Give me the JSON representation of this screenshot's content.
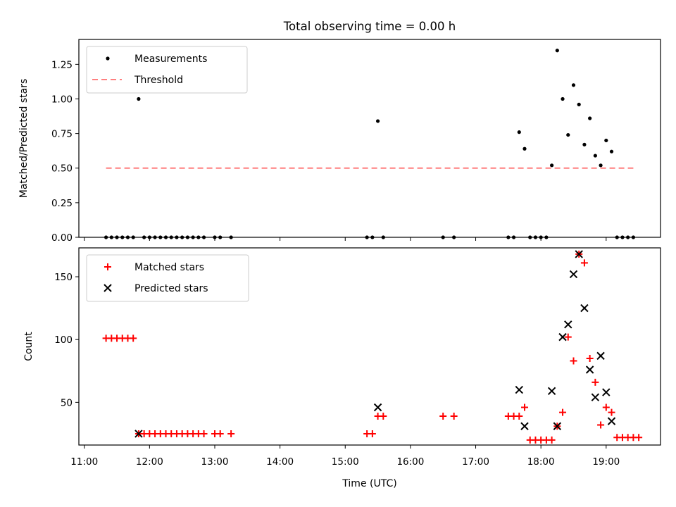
{
  "chart_data": {
    "title": "Total observing time = 0.00 h",
    "type": "scatter",
    "xlabel": "Time (UTC)",
    "x_ticks": [
      "11:00",
      "12:00",
      "13:00",
      "14:00",
      "15:00",
      "16:00",
      "17:00",
      "18:00",
      "19:00"
    ],
    "xlim": [
      "10:55",
      "19:50"
    ],
    "panels": [
      {
        "ylabel": "Matched/Predicted stars",
        "ylim": [
          0,
          1.43
        ],
        "y_ticks": [
          "0.00",
          "0.25",
          "0.50",
          "0.75",
          "1.00",
          "1.25"
        ],
        "legend": {
          "placement": "top-left",
          "entries": [
            "Measurements",
            "Threshold"
          ]
        },
        "series": [
          {
            "name": "Measurements",
            "color": "#000000",
            "marker": "dot",
            "points": [
              [
                "11:20",
                0
              ],
              [
                "11:25",
                0
              ],
              [
                "11:30",
                0
              ],
              [
                "11:35",
                0
              ],
              [
                "11:40",
                0
              ],
              [
                "11:45",
                0
              ],
              [
                "11:50",
                1.0
              ],
              [
                "11:55",
                0
              ],
              [
                "12:00",
                0
              ],
              [
                "12:05",
                0
              ],
              [
                "12:10",
                0
              ],
              [
                "12:15",
                0
              ],
              [
                "12:20",
                0
              ],
              [
                "12:25",
                0
              ],
              [
                "12:30",
                0
              ],
              [
                "12:35",
                0
              ],
              [
                "12:40",
                0
              ],
              [
                "12:45",
                0
              ],
              [
                "12:50",
                0
              ],
              [
                "13:00",
                0
              ],
              [
                "13:05",
                0
              ],
              [
                "13:15",
                0
              ],
              [
                "15:20",
                0
              ],
              [
                "15:25",
                0
              ],
              [
                "15:30",
                0.84
              ],
              [
                "15:35",
                0
              ],
              [
                "16:30",
                0
              ],
              [
                "16:40",
                0
              ],
              [
                "17:30",
                0
              ],
              [
                "17:35",
                0
              ],
              [
                "17:40",
                0.76
              ],
              [
                "17:45",
                0.64
              ],
              [
                "17:50",
                0
              ],
              [
                "17:55",
                0
              ],
              [
                "18:00",
                0
              ],
              [
                "18:05",
                0
              ],
              [
                "18:10",
                0.52
              ],
              [
                "18:15",
                1.35
              ],
              [
                "18:20",
                1.0
              ],
              [
                "18:25",
                0.74
              ],
              [
                "18:30",
                1.1
              ],
              [
                "18:35",
                0.96
              ],
              [
                "18:40",
                0.67
              ],
              [
                "18:45",
                0.86
              ],
              [
                "18:50",
                0.59
              ],
              [
                "18:55",
                0.52
              ],
              [
                "19:00",
                0.7
              ],
              [
                "19:05",
                0.62
              ],
              [
                "19:10",
                0
              ],
              [
                "19:15",
                0
              ],
              [
                "19:20",
                0
              ],
              [
                "19:25",
                0
              ]
            ]
          },
          {
            "name": "Threshold",
            "color": "#ff7f7f",
            "style": "dashed",
            "points": [
              [
                "11:20",
                0.5
              ],
              [
                "19:25",
                0.5
              ]
            ]
          }
        ]
      },
      {
        "ylabel": "Count",
        "ylim": [
          16,
          173
        ],
        "y_ticks": [
          "50",
          "100",
          "150"
        ],
        "legend": {
          "placement": "top-left",
          "entries": [
            "Matched stars",
            "Predicted stars"
          ]
        },
        "series": [
          {
            "name": "Matched stars",
            "color": "#ff0000",
            "marker": "plus",
            "points": [
              [
                "11:20",
                101
              ],
              [
                "11:25",
                101
              ],
              [
                "11:30",
                101
              ],
              [
                "11:35",
                101
              ],
              [
                "11:40",
                101
              ],
              [
                "11:45",
                101
              ],
              [
                "11:50",
                25
              ],
              [
                "11:55",
                25
              ],
              [
                "12:00",
                25
              ],
              [
                "12:05",
                25
              ],
              [
                "12:10",
                25
              ],
              [
                "12:15",
                25
              ],
              [
                "12:20",
                25
              ],
              [
                "12:25",
                25
              ],
              [
                "12:30",
                25
              ],
              [
                "12:35",
                25
              ],
              [
                "12:40",
                25
              ],
              [
                "12:45",
                25
              ],
              [
                "12:50",
                25
              ],
              [
                "13:00",
                25
              ],
              [
                "13:05",
                25
              ],
              [
                "13:15",
                25
              ],
              [
                "15:20",
                25
              ],
              [
                "15:25",
                25
              ],
              [
                "15:30",
                39
              ],
              [
                "15:35",
                39
              ],
              [
                "16:30",
                39
              ],
              [
                "16:40",
                39
              ],
              [
                "17:30",
                39
              ],
              [
                "17:35",
                39
              ],
              [
                "17:40",
                39
              ],
              [
                "17:45",
                46
              ],
              [
                "17:50",
                20
              ],
              [
                "17:55",
                20
              ],
              [
                "18:00",
                20
              ],
              [
                "18:05",
                20
              ],
              [
                "18:10",
                20
              ],
              [
                "18:15",
                31
              ],
              [
                "18:20",
                42
              ],
              [
                "18:25",
                102
              ],
              [
                "18:30",
                83
              ],
              [
                "18:35",
                168
              ],
              [
                "18:40",
                161
              ],
              [
                "18:45",
                85
              ],
              [
                "18:50",
                66
              ],
              [
                "18:55",
                32
              ],
              [
                "19:00",
                46
              ],
              [
                "19:05",
                42
              ],
              [
                "19:10",
                22
              ],
              [
                "19:15",
                22
              ],
              [
                "19:20",
                22
              ],
              [
                "19:25",
                22
              ],
              [
                "19:30",
                22
              ]
            ]
          },
          {
            "name": "Predicted stars",
            "color": "#000000",
            "marker": "x",
            "points": [
              [
                "11:50",
                25
              ],
              [
                "15:30",
                46
              ],
              [
                "17:40",
                60
              ],
              [
                "17:45",
                31
              ],
              [
                "18:10",
                59
              ],
              [
                "18:15",
                31
              ],
              [
                "18:20",
                102
              ],
              [
                "18:25",
                112
              ],
              [
                "18:30",
                152
              ],
              [
                "18:35",
                168
              ],
              [
                "18:40",
                125
              ],
              [
                "18:45",
                76
              ],
              [
                "18:50",
                54
              ],
              [
                "18:55",
                87
              ],
              [
                "19:00",
                58
              ],
              [
                "19:05",
                35
              ]
            ]
          }
        ]
      }
    ]
  }
}
